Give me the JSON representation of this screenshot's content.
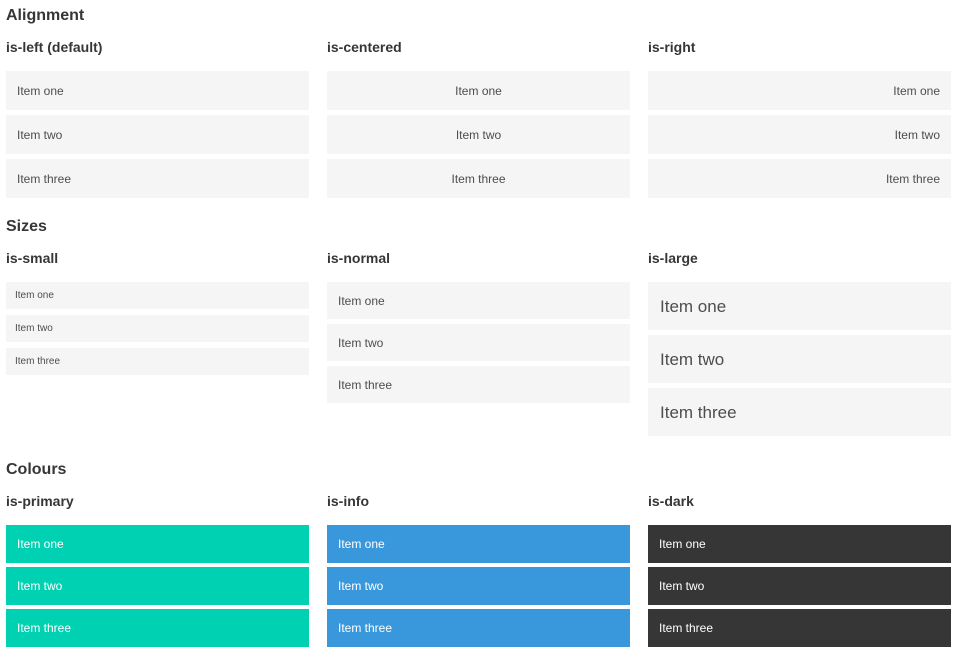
{
  "colors": {
    "page_background": "#ffffff",
    "heading_text": "#363636",
    "item_background_light": "#f5f5f5",
    "item_text_light": "#4d4d4d",
    "item_text_on_colour": "#ffffff",
    "primary": "#00d1b2",
    "info": "#3898db",
    "dark": "#363636"
  },
  "sections": [
    {
      "title": "Alignment",
      "columns": [
        {
          "label": "is-left (default)",
          "items": [
            "Item one",
            "Item two",
            "Item three"
          ]
        },
        {
          "label": "is-centered",
          "items": [
            "Item one",
            "Item two",
            "Item three"
          ]
        },
        {
          "label": "is-right",
          "items": [
            "Item one",
            "Item two",
            "Item three"
          ]
        }
      ]
    },
    {
      "title": "Sizes",
      "columns": [
        {
          "label": "is-small",
          "items": [
            "Item one",
            "Item two",
            "Item three"
          ]
        },
        {
          "label": "is-normal",
          "items": [
            "Item one",
            "Item two",
            "Item three"
          ]
        },
        {
          "label": "is-large",
          "items": [
            "Item one",
            "Item two",
            "Item three"
          ]
        }
      ]
    },
    {
      "title": "Colours",
      "columns": [
        {
          "label": "is-primary",
          "color": "#00d1b2",
          "items": [
            "Item one",
            "Item two",
            "Item three"
          ]
        },
        {
          "label": "is-info",
          "color": "#3898db",
          "items": [
            "Item one",
            "Item two",
            "Item three"
          ]
        },
        {
          "label": "is-dark",
          "color": "#363636",
          "items": [
            "Item one",
            "Item two",
            "Item three"
          ]
        }
      ]
    }
  ]
}
